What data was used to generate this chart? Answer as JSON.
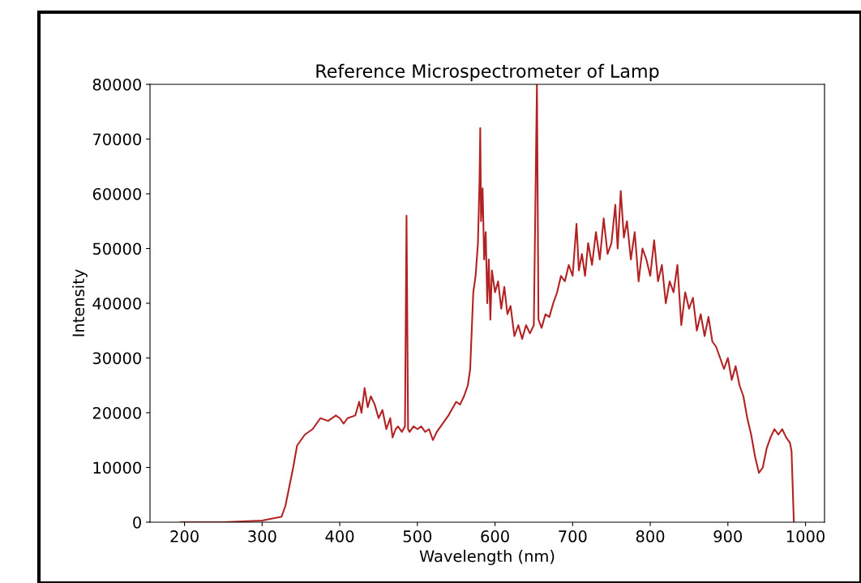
{
  "chart_data": {
    "type": "line",
    "title": "Reference Microspectrometer of Lamp",
    "xlabel": "Wavelength (nm)",
    "ylabel": "Intensity",
    "xlim": [
      155.5,
      1024.5
    ],
    "ylim": [
      0,
      80000
    ],
    "xticks": [
      200,
      300,
      400,
      500,
      600,
      700,
      800,
      900,
      1000
    ],
    "yticks": [
      0,
      10000,
      20000,
      30000,
      40000,
      50000,
      60000,
      70000,
      80000
    ],
    "grid": false,
    "series": [
      {
        "color": "#b22222",
        "x": [
          195,
          250,
          300,
          325,
          330,
          340,
          345,
          355,
          365,
          375,
          385,
          395,
          400,
          405,
          410,
          420,
          425,
          428,
          432,
          436,
          440,
          445,
          450,
          455,
          460,
          465,
          468,
          472,
          475,
          480,
          484,
          486,
          488,
          490,
          495,
          500,
          505,
          510,
          515,
          520,
          525,
          530,
          540,
          550,
          555,
          560,
          565,
          568,
          572,
          575,
          578,
          580,
          581,
          582,
          584,
          586,
          588,
          590,
          592,
          594,
          596,
          600,
          604,
          608,
          612,
          616,
          620,
          625,
          630,
          635,
          640,
          645,
          650,
          654,
          656,
          660,
          665,
          670,
          675,
          680,
          685,
          690,
          695,
          700,
          705,
          708,
          712,
          716,
          720,
          725,
          730,
          735,
          740,
          745,
          750,
          755,
          758,
          762,
          766,
          770,
          775,
          780,
          785,
          790,
          795,
          800,
          805,
          810,
          815,
          820,
          825,
          830,
          835,
          840,
          845,
          850,
          855,
          860,
          865,
          870,
          875,
          880,
          885,
          890,
          895,
          900,
          905,
          910,
          915,
          920,
          925,
          930,
          935,
          940,
          945,
          950,
          955,
          960,
          965,
          970,
          975,
          980,
          982,
          985
        ],
        "values": [
          0,
          0,
          300,
          1000,
          3000,
          10000,
          14000,
          16000,
          17000,
          19000,
          18500,
          19500,
          19000,
          18000,
          19000,
          19500,
          22000,
          20000,
          24500,
          21000,
          23000,
          21500,
          19000,
          20500,
          17000,
          19000,
          15500,
          17000,
          17500,
          16500,
          17500,
          56000,
          17000,
          16500,
          17500,
          17000,
          17500,
          16500,
          17000,
          15000,
          16500,
          17500,
          19500,
          22000,
          21500,
          23000,
          25000,
          28000,
          42000,
          45000,
          51000,
          62000,
          72000,
          55000,
          61000,
          48000,
          53000,
          40000,
          48000,
          37000,
          46000,
          42000,
          44000,
          39000,
          43000,
          38000,
          39500,
          34000,
          36000,
          33500,
          36000,
          34500,
          36000,
          80000,
          37000,
          35500,
          38000,
          37500,
          40000,
          42000,
          45000,
          44000,
          47000,
          45000,
          54500,
          46000,
          49000,
          45000,
          51000,
          47000,
          53000,
          48000,
          55500,
          49000,
          51000,
          58000,
          50000,
          60500,
          52000,
          55000,
          48000,
          53000,
          44000,
          50000,
          48000,
          45000,
          51500,
          44000,
          47000,
          40000,
          44000,
          42000,
          47000,
          36000,
          42000,
          39000,
          41000,
          35000,
          38000,
          34000,
          37500,
          33000,
          32000,
          30000,
          28000,
          30000,
          26000,
          28500,
          25000,
          23000,
          19000,
          16000,
          12000,
          9000,
          10000,
          13500,
          15500,
          17000,
          16000,
          17000,
          15500,
          14500,
          13000,
          0
        ]
      }
    ]
  }
}
